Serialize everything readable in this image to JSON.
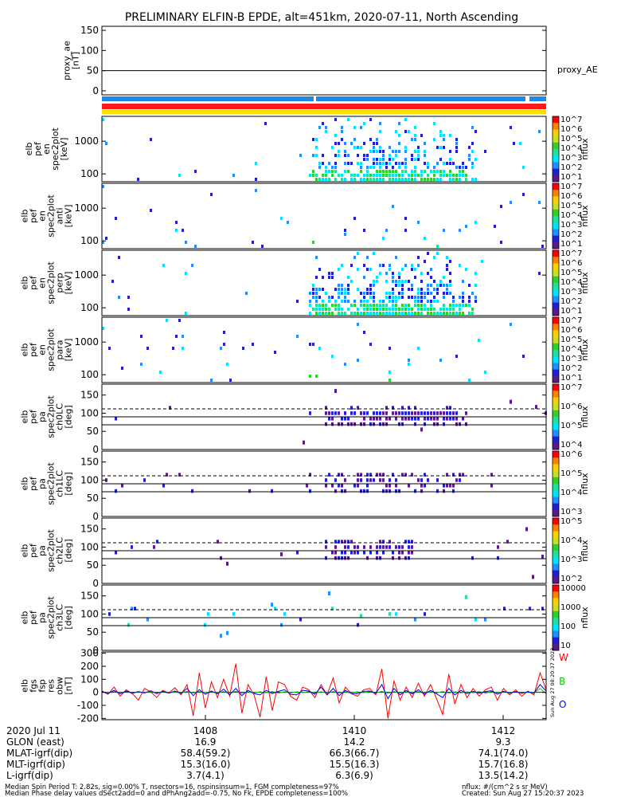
{
  "title": "PRELIMINARY ELFIN-B EPDE, alt=451km, 2020-07-11, North Ascending",
  "colors": {
    "bar_blue": "#1e88e5",
    "bar_red": "#ff1a1a",
    "bar_yellow": "#ffe000",
    "trace_w": "#ff0000",
    "trace_b": "#00cc00",
    "trace_o": "#0000ff",
    "colormap": [
      "#ffffff",
      "#5a1a8a",
      "#2020d0",
      "#1e90ff",
      "#00e5ff",
      "#20e0a0",
      "#30d030",
      "#c8e020",
      "#ffd000",
      "#ff8000",
      "#ff0000"
    ]
  },
  "chart_data": [
    {
      "type": "line",
      "panel": "proxy_ae",
      "ylabel_lines": [
        "proxy_ae",
        "[nT]"
      ],
      "ylim": [
        -10,
        160
      ],
      "yticks": [
        "150",
        "100",
        "50",
        "0"
      ],
      "legend": "proxy_AE",
      "hline_at": 50
    },
    {
      "type": "heatmap",
      "panel": "energy-spectrum",
      "ylabel_lines": [
        "elb",
        "pef",
        "en",
        "spec2plot",
        "[keV]"
      ],
      "yticks": [
        "1000",
        "100"
      ],
      "colorbar_label": "nflux",
      "colorbar_ticks": [
        "10^7",
        "10^6",
        "10^5",
        "10^4",
        "10^3",
        "10^2",
        "10^1"
      ]
    },
    {
      "type": "heatmap",
      "panel": "energy-spectrum-anti",
      "ylabel_lines": [
        "elb",
        "pef",
        "en",
        "spec2plot",
        "anti",
        "[keV]"
      ],
      "yticks": [
        "1000",
        "100"
      ],
      "colorbar_label": "nflux",
      "colorbar_ticks": [
        "10^7",
        "10^6",
        "10^5",
        "10^4",
        "10^3",
        "10^2",
        "10^1"
      ]
    },
    {
      "type": "heatmap",
      "panel": "energy-spectrum-perp",
      "ylabel_lines": [
        "elb",
        "pef",
        "en",
        "spec2plot",
        "perp",
        "[keV]"
      ],
      "yticks": [
        "1000",
        "100"
      ],
      "colorbar_label": "nflux",
      "colorbar_ticks": [
        "10^7",
        "10^6",
        "10^5",
        "10^4",
        "10^3",
        "10^2",
        "10^1"
      ]
    },
    {
      "type": "heatmap",
      "panel": "energy-spectrum-para",
      "ylabel_lines": [
        "elb",
        "pef",
        "en",
        "spec2plot",
        "para",
        "[keV]"
      ],
      "yticks": [
        "1000",
        "100"
      ],
      "colorbar_label": "nflux",
      "colorbar_ticks": [
        "10^7",
        "10^6",
        "10^5",
        "10^4",
        "10^3",
        "10^2",
        "10^1"
      ]
    },
    {
      "type": "heatmap",
      "panel": "pitch-angle-ch0",
      "ylabel_lines": [
        "elb",
        "pef",
        "pa",
        "spec2plot",
        "ch0LC",
        "[deg]"
      ],
      "ylim": [
        0,
        180
      ],
      "yticks": [
        "150",
        "100",
        "50",
        "0"
      ],
      "colorbar_label": "nflux",
      "colorbar_ticks": [
        "10^7",
        "10^6",
        "10^5",
        "10^4"
      ]
    },
    {
      "type": "heatmap",
      "panel": "pitch-angle-ch1",
      "ylabel_lines": [
        "elb",
        "pef",
        "pa",
        "spec2plot",
        "ch1LC",
        "[deg]"
      ],
      "ylim": [
        0,
        180
      ],
      "yticks": [
        "150",
        "100",
        "50",
        "0"
      ],
      "colorbar_label": "nflux",
      "colorbar_ticks": [
        "10^6",
        "10^5",
        "10^4",
        "10^3"
      ]
    },
    {
      "type": "heatmap",
      "panel": "pitch-angle-ch2",
      "ylabel_lines": [
        "elb",
        "pef",
        "pa",
        "spec2plot",
        "ch2LC",
        "[deg]"
      ],
      "ylim": [
        0,
        180
      ],
      "yticks": [
        "150",
        "100",
        "50",
        "0"
      ],
      "colorbar_label": "nflux",
      "colorbar_ticks": [
        "10^5",
        "10^4",
        "10^3",
        "10^2"
      ]
    },
    {
      "type": "heatmap",
      "panel": "pitch-angle-ch3",
      "ylabel_lines": [
        "elb",
        "pef",
        "pa",
        "spec2plot",
        "ch3LC",
        "[deg]"
      ],
      "ylim": [
        0,
        180
      ],
      "yticks": [
        "150",
        "100",
        "50",
        "0"
      ],
      "colorbar_label": "nflux",
      "colorbar_ticks": [
        "10000",
        "1000",
        "100",
        "10"
      ]
    },
    {
      "type": "line",
      "panel": "magnetometer",
      "ylabel_lines": [
        "elb",
        "fgs",
        "fsp",
        "res",
        "obw",
        "[nT]"
      ],
      "ylim": [
        -210,
        310
      ],
      "yticks": [
        "300",
        "200",
        "100",
        "0",
        "-100",
        "-200"
      ],
      "series": [
        {
          "name": "W",
          "values": [
            10,
            -15,
            40,
            -30,
            20,
            -10,
            -60,
            30,
            5,
            -40,
            15,
            -5,
            35,
            -20,
            60,
            -180,
            150,
            -120,
            80,
            -40,
            100,
            -30,
            220,
            -160,
            60,
            -20,
            -190,
            120,
            -140,
            80,
            60,
            -30,
            -60,
            40,
            20,
            -40,
            60,
            -20,
            110,
            -80,
            40,
            -10,
            -30,
            20,
            30,
            -20,
            180,
            -200,
            90,
            -60,
            40,
            -40,
            70,
            -30,
            60,
            -50,
            -170,
            140,
            -90,
            60,
            -40,
            30,
            -30,
            20,
            40,
            -60,
            30,
            -20,
            20,
            -30,
            10,
            -20,
            150,
            20
          ]
        },
        {
          "name": "B",
          "values": [
            5,
            -5,
            10,
            -10,
            8,
            -6,
            4,
            -4,
            6,
            -6,
            5,
            -5,
            4,
            -4,
            8,
            -6,
            6,
            -4,
            5,
            -5,
            6,
            -6,
            8,
            -8,
            5,
            -5,
            4,
            -4,
            6,
            -6,
            5,
            -5,
            4,
            -4,
            6,
            -6,
            5,
            -5,
            6,
            -6,
            5,
            -5,
            4,
            -4,
            6,
            -6,
            8,
            -8,
            6,
            -6,
            5,
            -5,
            6,
            -6,
            5,
            -5,
            6,
            -6,
            5,
            -5,
            4,
            -4,
            6,
            -6,
            5,
            -5,
            4,
            -4,
            5,
            -5,
            4,
            -4,
            30,
            -10
          ]
        },
        {
          "name": "O",
          "values": [
            8,
            -10,
            15,
            -12,
            10,
            -8,
            6,
            -5,
            12,
            -10,
            8,
            -6,
            10,
            -8,
            30,
            -25,
            20,
            -15,
            10,
            -12,
            25,
            -20,
            30,
            -25,
            15,
            -10,
            -20,
            15,
            -10,
            8,
            20,
            -15,
            -20,
            15,
            10,
            -15,
            40,
            -20,
            30,
            -25,
            15,
            -10,
            -10,
            8,
            10,
            -8,
            60,
            -50,
            30,
            -20,
            15,
            -12,
            20,
            -15,
            15,
            -12,
            -40,
            30,
            -20,
            15,
            -10,
            8,
            -8,
            6,
            12,
            -15,
            8,
            -6,
            6,
            -8,
            4,
            -6,
            60,
            10
          ]
        }
      ],
      "legend": [
        "W",
        "B",
        "O"
      ]
    }
  ],
  "axis_footer": {
    "row_labels": [
      "2020 Jul 11",
      "GLON (east)",
      "MLAT-igrf(dip)",
      "MLT-igrf(dip)",
      "L-igrf(dip)"
    ],
    "columns": [
      {
        "time": "1408",
        "glon": "16.9",
        "mlat": "58.4(59.2)",
        "mlt": "15.3(16.0)",
        "l": "3.7(4.1)"
      },
      {
        "time": "1410",
        "glon": "14.2",
        "mlat": "66.3(66.7)",
        "mlt": "15.5(16.3)",
        "l": "6.3(6.9)"
      },
      {
        "time": "1412",
        "glon": "9.3",
        "mlat": "74.1(74.0)",
        "mlt": "15.7(16.8)",
        "l": "13.5(14.2)"
      }
    ]
  },
  "footnotes": {
    "line1": "Median Spin Period T: 2.82s, sig=0.00% T, nsectors=16, nspinsinsum=1, FGM completeness=97%",
    "line2": "Median Phase delay values dSect2add=0 and dPhAng2add=-0.75, No Fk, EPDE completeness=100%",
    "units": "nflux: #/(cm^2 s sr MeV)",
    "created": "Created: Sun Aug 27 15:20:37 2023",
    "side_stamp": "Sun Aug 27 08:20:37 2023"
  }
}
